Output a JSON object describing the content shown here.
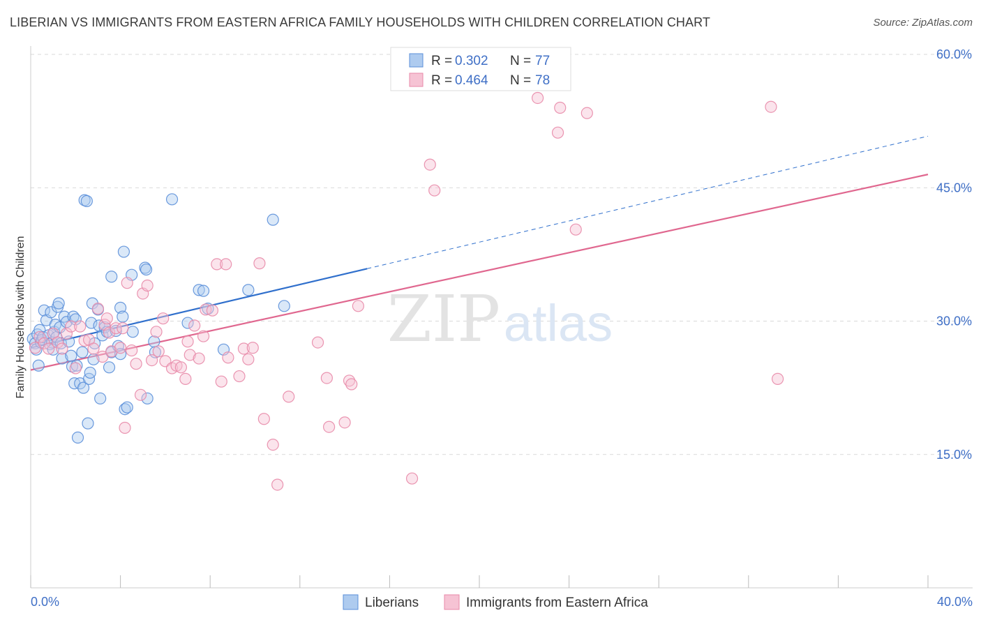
{
  "header": {
    "title": "LIBERIAN VS IMMIGRANTS FROM EASTERN AFRICA FAMILY HOUSEHOLDS WITH CHILDREN CORRELATION CHART",
    "source": "Source: ZipAtlas.com"
  },
  "watermark": {
    "zip": "ZIP",
    "atlas": "atlas"
  },
  "colors": {
    "blue": "#5b8fd9",
    "blue_fill": "#aecbef",
    "blue_line": "#2f6fcc",
    "pink": "#e889a8",
    "pink_fill": "#f6c3d4",
    "pink_line": "#e0678f",
    "tick_text": "#3f6fc6",
    "grid": "#d9d9d9"
  },
  "chart_data": {
    "type": "scatter",
    "ylabel": "Family Households with Children",
    "xlim": [
      0,
      40
    ],
    "ylim": [
      0,
      60
    ],
    "x_tick_labels": [
      "0.0%",
      "40.0%"
    ],
    "y_ticks": [
      15,
      30,
      45,
      60
    ],
    "y_tick_labels": [
      "15.0%",
      "30.0%",
      "45.0%",
      "60.0%"
    ],
    "grid": true,
    "legend_position": "top-center",
    "stats": [
      {
        "r_label": "R = ",
        "r_value": "0.302",
        "n_label": "N = ",
        "n_value": "77"
      },
      {
        "r_label": "R = ",
        "r_value": "0.464",
        "n_label": "N = ",
        "n_value": "78"
      }
    ],
    "series": [
      {
        "name": "Liberians",
        "color": "#5b8fd9",
        "trend": {
          "x": [
            0,
            15
          ],
          "y": [
            27.0,
            35.9
          ],
          "dashed_to": [
            40,
            50.8
          ]
        },
        "points": [
          [
            0.1,
            28.0
          ],
          [
            0.2,
            27.5
          ],
          [
            0.25,
            26.8
          ],
          [
            0.3,
            28.5
          ],
          [
            0.35,
            25.0
          ],
          [
            0.4,
            29.0
          ],
          [
            0.45,
            27.6
          ],
          [
            0.5,
            27.9
          ],
          [
            0.55,
            28.2
          ],
          [
            0.6,
            31.2
          ],
          [
            0.7,
            30.1
          ],
          [
            0.8,
            28.4
          ],
          [
            0.85,
            27.4
          ],
          [
            0.9,
            31.0
          ],
          [
            0.95,
            27.6
          ],
          [
            1.0,
            26.8
          ],
          [
            1.05,
            28.8
          ],
          [
            1.1,
            29.6
          ],
          [
            1.15,
            28.2
          ],
          [
            1.2,
            31.6
          ],
          [
            1.25,
            32.0
          ],
          [
            1.3,
            29.3
          ],
          [
            1.35,
            27.5
          ],
          [
            1.4,
            25.8
          ],
          [
            1.5,
            30.5
          ],
          [
            1.6,
            29.9
          ],
          [
            1.7,
            27.7
          ],
          [
            1.8,
            26.1
          ],
          [
            1.85,
            24.9
          ],
          [
            1.9,
            30.5
          ],
          [
            1.95,
            23.0
          ],
          [
            2.0,
            30.2
          ],
          [
            2.05,
            25.0
          ],
          [
            2.1,
            16.9
          ],
          [
            2.2,
            23.0
          ],
          [
            2.3,
            26.5
          ],
          [
            2.35,
            22.5
          ],
          [
            2.4,
            43.6
          ],
          [
            2.5,
            43.5
          ],
          [
            2.55,
            18.5
          ],
          [
            2.6,
            23.5
          ],
          [
            2.65,
            24.2
          ],
          [
            2.7,
            29.8
          ],
          [
            2.75,
            32.0
          ],
          [
            2.8,
            25.7
          ],
          [
            2.85,
            27.5
          ],
          [
            3.0,
            31.3
          ],
          [
            3.05,
            29.5
          ],
          [
            3.1,
            21.3
          ],
          [
            3.2,
            28.4
          ],
          [
            3.3,
            29.3
          ],
          [
            3.4,
            28.8
          ],
          [
            3.5,
            24.8
          ],
          [
            3.6,
            26.5
          ],
          [
            3.6,
            35.0
          ],
          [
            3.8,
            28.9
          ],
          [
            3.9,
            27.2
          ],
          [
            4.0,
            26.3
          ],
          [
            4.0,
            31.5
          ],
          [
            4.1,
            30.5
          ],
          [
            4.15,
            37.8
          ],
          [
            4.2,
            20.1
          ],
          [
            4.3,
            20.3
          ],
          [
            4.5,
            35.2
          ],
          [
            4.55,
            28.8
          ],
          [
            5.1,
            36.0
          ],
          [
            5.15,
            35.8
          ],
          [
            5.2,
            21.3
          ],
          [
            5.5,
            27.7
          ],
          [
            5.55,
            26.5
          ],
          [
            6.3,
            43.7
          ],
          [
            7.0,
            29.8
          ],
          [
            7.5,
            33.5
          ],
          [
            7.7,
            33.4
          ],
          [
            7.9,
            31.4
          ],
          [
            8.6,
            26.8
          ],
          [
            9.7,
            33.5
          ],
          [
            10.8,
            41.4
          ],
          [
            11.3,
            31.7
          ]
        ]
      },
      {
        "name": "Immigrants from Eastern Africa",
        "color": "#e889a8",
        "trend": {
          "x": [
            0,
            40
          ],
          "y": [
            24.5,
            46.5
          ]
        },
        "points": [
          [
            0.2,
            27.0
          ],
          [
            0.4,
            28.2
          ],
          [
            0.6,
            27.5
          ],
          [
            0.8,
            26.9
          ],
          [
            1.0,
            28.6
          ],
          [
            1.2,
            27.6
          ],
          [
            1.4,
            26.9
          ],
          [
            1.6,
            28.6
          ],
          [
            1.8,
            29.4
          ],
          [
            2.0,
            24.7
          ],
          [
            2.2,
            29.4
          ],
          [
            2.4,
            27.8
          ],
          [
            2.6,
            27.9
          ],
          [
            2.8,
            26.9
          ],
          [
            3.0,
            31.4
          ],
          [
            3.2,
            26.0
          ],
          [
            3.3,
            29.6
          ],
          [
            3.4,
            30.3
          ],
          [
            3.5,
            28.7
          ],
          [
            3.6,
            26.6
          ],
          [
            3.8,
            29.2
          ],
          [
            4.0,
            27.0
          ],
          [
            4.1,
            29.2
          ],
          [
            4.2,
            18.0
          ],
          [
            4.3,
            34.3
          ],
          [
            4.5,
            26.7
          ],
          [
            4.7,
            25.2
          ],
          [
            4.9,
            21.7
          ],
          [
            5.0,
            33.1
          ],
          [
            5.2,
            34.0
          ],
          [
            5.4,
            25.6
          ],
          [
            5.6,
            28.8
          ],
          [
            5.7,
            26.6
          ],
          [
            5.9,
            30.3
          ],
          [
            6.0,
            25.5
          ],
          [
            6.3,
            24.7
          ],
          [
            6.5,
            25.0
          ],
          [
            6.7,
            24.8
          ],
          [
            6.9,
            23.5
          ],
          [
            7.0,
            27.7
          ],
          [
            7.1,
            26.2
          ],
          [
            7.3,
            29.5
          ],
          [
            7.5,
            25.8
          ],
          [
            7.7,
            28.3
          ],
          [
            7.8,
            31.3
          ],
          [
            8.1,
            31.2
          ],
          [
            8.3,
            36.4
          ],
          [
            8.5,
            23.2
          ],
          [
            8.7,
            36.4
          ],
          [
            8.8,
            25.9
          ],
          [
            9.3,
            23.8
          ],
          [
            9.5,
            26.9
          ],
          [
            9.7,
            25.7
          ],
          [
            9.9,
            27.0
          ],
          [
            10.2,
            36.5
          ],
          [
            10.4,
            19.0
          ],
          [
            10.8,
            16.1
          ],
          [
            11.0,
            11.6
          ],
          [
            11.5,
            21.5
          ],
          [
            12.8,
            27.6
          ],
          [
            13.2,
            23.6
          ],
          [
            13.3,
            18.1
          ],
          [
            14.0,
            18.6
          ],
          [
            14.2,
            23.3
          ],
          [
            14.3,
            22.9
          ],
          [
            14.6,
            31.7
          ],
          [
            17.0,
            12.3
          ],
          [
            17.8,
            47.6
          ],
          [
            18.0,
            44.7
          ],
          [
            22.6,
            55.1
          ],
          [
            23.5,
            51.2
          ],
          [
            23.6,
            54.0
          ],
          [
            24.3,
            40.3
          ],
          [
            24.8,
            53.4
          ],
          [
            33.0,
            54.1
          ],
          [
            33.3,
            23.5
          ]
        ]
      }
    ]
  }
}
